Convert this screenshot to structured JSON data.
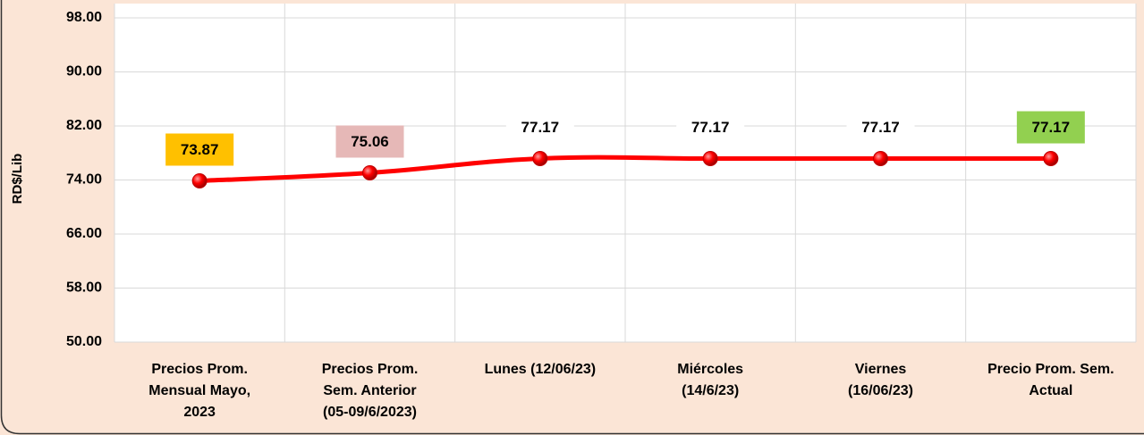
{
  "chart_data": {
    "type": "line",
    "y_label": "RD$/Lib",
    "categories": [
      [
        "Precios Prom.",
        "Mensual Mayo,",
        "2023"
      ],
      [
        "Precios Prom.",
        "Sem. Anterior",
        "(05-09/6/2023)"
      ],
      [
        "Lunes  (12/06/23)"
      ],
      [
        "Miércoles",
        "(14/6/23)"
      ],
      [
        "Viernes",
        "(16/06/23)"
      ],
      [
        "Precio Prom. Sem.",
        "Actual"
      ]
    ],
    "values": [
      73.87,
      75.06,
      77.17,
      77.17,
      77.17,
      77.17
    ],
    "color": "#ff0000",
    "label_backgrounds": [
      "#ffc000",
      "#e6b8b7",
      "#ffffff",
      "#ffffff",
      "#ffffff",
      "#92d050"
    ],
    "ylim": [
      50,
      98
    ],
    "yticks": [
      {
        "value": 50,
        "label": "50.00"
      },
      {
        "value": 58,
        "label": "58.00"
      },
      {
        "value": 66,
        "label": "66.00"
      },
      {
        "value": 74,
        "label": "74.00"
      },
      {
        "value": 82,
        "label": "82.00"
      },
      {
        "value": 90,
        "label": "90.00"
      },
      {
        "value": 98,
        "label": "98.00"
      }
    ],
    "grid": true
  }
}
